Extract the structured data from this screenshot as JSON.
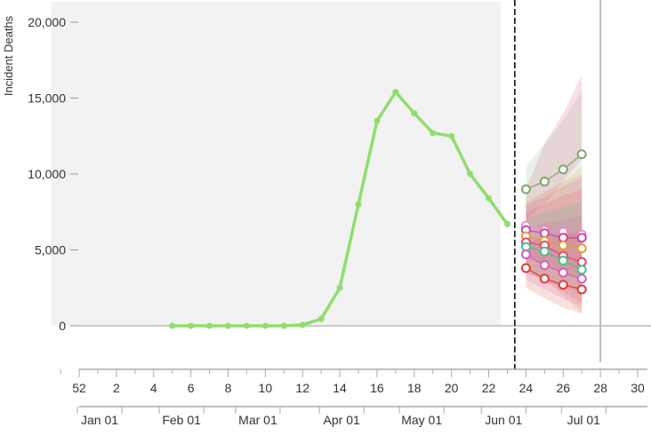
{
  "chart_data": {
    "type": "line",
    "ylabel": "Incident Deaths",
    "y_ticks": [
      0,
      5000,
      10000,
      15000,
      20000
    ],
    "y_tick_labels": [
      "0",
      "5,000",
      "10,000",
      "15,000",
      "20,000"
    ],
    "ylim": [
      -2500,
      21000
    ],
    "x_unit": "epiweek",
    "xlim": [
      -1.5,
      31.5
    ],
    "x_week_ticks": [
      0,
      2,
      4,
      6,
      8,
      10,
      12,
      14,
      16,
      18,
      20,
      22,
      24,
      26,
      28,
      30
    ],
    "x_week_labels": [
      "52",
      "2",
      "4",
      "6",
      "8",
      "10",
      "12",
      "14",
      "16",
      "18",
      "20",
      "22",
      "24",
      "26",
      "28",
      "30"
    ],
    "x_month_ticks": [
      1.1,
      5.5,
      9.6,
      14.1,
      18.4,
      22.8,
      27.1
    ],
    "x_month_labels": [
      "Jan 01",
      "Feb 01",
      "Mar 01",
      "Apr 01",
      "May 01",
      "Jun 01",
      "Jul 01"
    ],
    "observed_region": [
      -1.5,
      22.5
    ],
    "forecast_date_week": 23.4,
    "vertical_line_week": 28,
    "observed": {
      "color": "#90dd6e",
      "x": [
        5,
        6,
        7,
        8,
        9,
        10,
        11,
        12,
        13,
        14,
        15,
        16,
        17,
        18,
        19,
        20,
        21,
        22,
        23
      ],
      "values": [
        0,
        0,
        0,
        0,
        0,
        0,
        0,
        60,
        450,
        2500,
        8000,
        13500,
        15400,
        14000,
        12700,
        12500,
        10000,
        8400,
        6700
      ]
    },
    "forecast_x": [
      24,
      25,
      26,
      27
    ],
    "forecasts": [
      {
        "color": "#7fa86a",
        "values": [
          9000,
          9500,
          10300,
          11300
        ],
        "band_lo": [
          7000,
          6000,
          5800,
          5500
        ],
        "band_hi": [
          10500,
          12000,
          13500,
          15500
        ]
      },
      {
        "color": "#e890c8",
        "values": [
          6600,
          6300,
          6200,
          6000
        ],
        "band_lo": [
          4800,
          4200,
          3800,
          3500
        ],
        "band_hi": [
          8200,
          8800,
          9500,
          10000
        ]
      },
      {
        "color": "#c84aa8",
        "values": [
          6300,
          6100,
          5800,
          5800
        ],
        "band_lo": [
          4500,
          4000,
          3500,
          3200
        ],
        "band_hi": [
          8000,
          8500,
          9200,
          9800
        ]
      },
      {
        "color": "#e0a030",
        "values": [
          5900,
          5600,
          5300,
          5100
        ],
        "band_lo": [
          3800,
          3000,
          2000,
          800
        ],
        "band_hi": [
          8000,
          8800,
          9500,
          10500
        ]
      },
      {
        "color": "#e84a6a",
        "values": [
          5500,
          5300,
          4600,
          4200
        ],
        "band_lo": [
          3500,
          3000,
          2200,
          1500
        ],
        "band_hi": [
          7500,
          8000,
          8600,
          9000
        ]
      },
      {
        "color": "#4ac090",
        "values": [
          5200,
          4900,
          4300,
          3700
        ],
        "band_lo": [
          3500,
          3000,
          2500,
          2000
        ],
        "band_hi": [
          7000,
          7500,
          7800,
          8200
        ]
      },
      {
        "color": "#d060c0",
        "values": [
          4700,
          4000,
          3500,
          3100
        ],
        "band_lo": [
          3000,
          2400,
          1800,
          1200
        ],
        "band_hi": [
          6500,
          6800,
          7000,
          7300
        ]
      },
      {
        "color": "#e03a3a",
        "values": [
          3800,
          3100,
          2700,
          2400
        ],
        "band_lo": [
          2500,
          1800,
          1200,
          800
        ],
        "band_hi": [
          5500,
          5800,
          6000,
          6300
        ]
      }
    ],
    "pink_band": {
      "color": "#f0a0c0",
      "band_lo": [
        7000,
        8000,
        9500,
        11000
      ],
      "band_hi": [
        9000,
        12000,
        14000,
        16500
      ]
    },
    "grid": false,
    "legend": "none"
  }
}
